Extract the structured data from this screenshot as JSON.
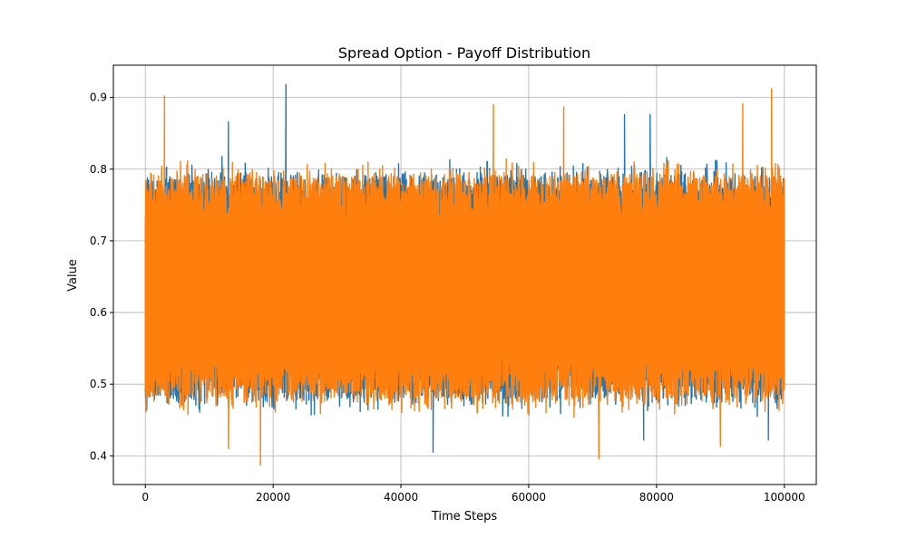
{
  "chart_data": {
    "type": "line",
    "title": "Spread Option - Payoff Distribution",
    "xlabel": "Time Steps",
    "ylabel": "Value",
    "xlim": [
      -5000,
      105000
    ],
    "ylim": [
      0.36,
      0.945
    ],
    "xticks": [
      0,
      20000,
      40000,
      60000,
      80000,
      100000
    ],
    "xtick_labels": [
      "0",
      "20000",
      "40000",
      "60000",
      "80000",
      "100000"
    ],
    "yticks": [
      0.4,
      0.5,
      0.6,
      0.7,
      0.8,
      0.9
    ],
    "ytick_labels": [
      "0.4",
      "0.5",
      "0.6",
      "0.7",
      "0.8",
      "0.9"
    ],
    "grid": true,
    "legend": "none",
    "n_points": 100000,
    "series": [
      {
        "color": "#1f77b4",
        "x_range": [
          0,
          100000
        ],
        "band": [
          0.48,
          0.79
        ],
        "extremes": [
          {
            "x": 22000,
            "y": 0.918
          },
          {
            "x": 13000,
            "y": 0.866
          },
          {
            "x": 75000,
            "y": 0.876
          },
          {
            "x": 79000,
            "y": 0.876
          },
          {
            "x": 45000,
            "y": 0.405
          },
          {
            "x": 78000,
            "y": 0.422
          },
          {
            "x": 97500,
            "y": 0.422
          },
          {
            "x": 71000,
            "y": 0.407
          }
        ]
      },
      {
        "color": "#ff7f0e",
        "x_range": [
          0,
          100000
        ],
        "band": [
          0.48,
          0.79
        ],
        "extremes": [
          {
            "x": 3000,
            "y": 0.902
          },
          {
            "x": 98000,
            "y": 0.912
          },
          {
            "x": 93500,
            "y": 0.891
          },
          {
            "x": 54500,
            "y": 0.89
          },
          {
            "x": 65500,
            "y": 0.887
          },
          {
            "x": 18000,
            "y": 0.387
          },
          {
            "x": 71000,
            "y": 0.396
          },
          {
            "x": 90000,
            "y": 0.413
          },
          {
            "x": 13000,
            "y": 0.41
          }
        ]
      }
    ]
  }
}
